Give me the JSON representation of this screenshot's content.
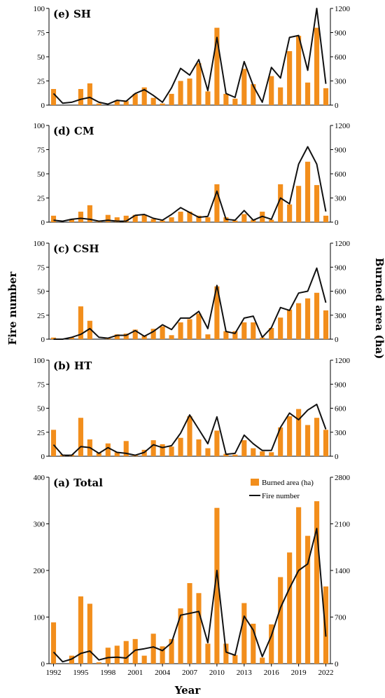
{
  "figure": {
    "ylabel_left": "Fire number",
    "ylabel_right": "Burned area (ha)",
    "xlabel": "Year"
  },
  "legend": {
    "bar_label": "Burned area (ha)",
    "line_label": "Fire number"
  },
  "chart_data": [
    {
      "type": "bar",
      "title": "(e) SH",
      "x": [
        1992,
        1993,
        1994,
        1995,
        1996,
        1997,
        1998,
        1999,
        2000,
        2001,
        2002,
        2003,
        2004,
        2005,
        2006,
        2007,
        2008,
        2009,
        2010,
        2011,
        2012,
        2013,
        2014,
        2015,
        2016,
        2017,
        2018,
        2019,
        2020,
        2021,
        2022
      ],
      "series": [
        {
          "name": "Burned area (ha)",
          "kind": "bar",
          "axis": "right",
          "values": [
            200,
            0,
            0,
            200,
            270,
            20,
            0,
            50,
            50,
            140,
            220,
            90,
            20,
            140,
            300,
            330,
            520,
            170,
            960,
            140,
            80,
            450,
            260,
            0,
            360,
            220,
            670,
            860,
            280,
            960,
            210
          ]
        },
        {
          "name": "Fire number",
          "kind": "line",
          "axis": "left",
          "values": [
            12,
            2,
            3,
            6,
            8,
            3,
            1,
            5,
            4,
            12,
            16,
            10,
            3,
            18,
            38,
            31,
            47,
            15,
            70,
            12,
            8,
            45,
            20,
            3,
            39,
            28,
            70,
            72,
            36,
            100,
            22
          ]
        }
      ],
      "ylim_left": [
        0,
        100
      ],
      "ylim_right": [
        0,
        1200
      ],
      "yticks_left": [
        "0",
        "25",
        "50",
        "75",
        "100"
      ],
      "yticks_right": [
        "0",
        "300",
        "600",
        "900",
        "1200"
      ]
    },
    {
      "type": "bar",
      "title": "(d) CM",
      "x": [
        1992,
        1993,
        1994,
        1995,
        1996,
        1997,
        1998,
        1999,
        2000,
        2001,
        2002,
        2003,
        2004,
        2005,
        2006,
        2007,
        2008,
        2009,
        2010,
        2011,
        2012,
        2013,
        2014,
        2015,
        2016,
        2017,
        2018,
        2019,
        2020,
        2021,
        2022
      ],
      "series": [
        {
          "name": "Burned area (ha)",
          "kind": "bar",
          "axis": "right",
          "values": [
            80,
            0,
            40,
            130,
            210,
            20,
            90,
            60,
            80,
            90,
            90,
            40,
            20,
            60,
            130,
            130,
            80,
            60,
            470,
            60,
            20,
            100,
            30,
            130,
            30,
            470,
            220,
            450,
            750,
            460,
            80
          ]
        },
        {
          "name": "Fire number",
          "kind": "line",
          "axis": "left",
          "values": [
            2,
            1,
            3,
            4,
            3,
            1,
            2,
            1,
            1,
            7,
            8,
            4,
            2,
            8,
            15,
            10,
            5,
            6,
            32,
            3,
            2,
            12,
            2,
            6,
            3,
            25,
            19,
            60,
            78,
            60,
            11
          ]
        }
      ],
      "ylim_left": [
        0,
        100
      ],
      "ylim_right": [
        0,
        1200
      ],
      "yticks_left": [
        "0",
        "25",
        "50",
        "75",
        "100"
      ],
      "yticks_right": [
        "0",
        "300",
        "600",
        "900",
        "1200"
      ]
    },
    {
      "type": "bar",
      "title": "(c) CSH",
      "x": [
        1992,
        1993,
        1994,
        1995,
        1996,
        1997,
        1998,
        1999,
        2000,
        2001,
        2002,
        2003,
        2004,
        2005,
        2006,
        2007,
        2008,
        2009,
        2010,
        2011,
        2012,
        2013,
        2014,
        2015,
        2016,
        2017,
        2018,
        2019,
        2020,
        2021,
        2022
      ],
      "series": [
        {
          "name": "Burned area (ha)",
          "kind": "bar",
          "axis": "right",
          "values": [
            20,
            0,
            20,
            410,
            230,
            0,
            20,
            60,
            70,
            120,
            40,
            130,
            160,
            50,
            210,
            250,
            320,
            60,
            660,
            100,
            100,
            210,
            210,
            20,
            140,
            270,
            370,
            450,
            510,
            580,
            360
          ]
        },
        {
          "name": "Fire number",
          "kind": "line",
          "axis": "left",
          "values": [
            0,
            0,
            2,
            5,
            11,
            2,
            1,
            4,
            4,
            9,
            3,
            8,
            15,
            10,
            22,
            22,
            29,
            11,
            56,
            8,
            6,
            22,
            24,
            2,
            12,
            33,
            30,
            48,
            50,
            74,
            38
          ]
        }
      ],
      "ylim_left": [
        0,
        100
      ],
      "ylim_right": [
        0,
        1200
      ],
      "yticks_left": [
        "0",
        "25",
        "50",
        "75",
        "100"
      ],
      "yticks_right": [
        "0",
        "300",
        "600",
        "900",
        "1200"
      ]
    },
    {
      "type": "bar",
      "title": "(b) HT",
      "x": [
        1992,
        1993,
        1994,
        1995,
        1996,
        1997,
        1998,
        1999,
        2000,
        2001,
        2002,
        2003,
        2004,
        2005,
        2006,
        2007,
        2008,
        2009,
        2010,
        2011,
        2012,
        2013,
        2014,
        2015,
        2016,
        2017,
        2018,
        2019,
        2020,
        2021,
        2022
      ],
      "series": [
        {
          "name": "Burned area (ha)",
          "kind": "bar",
          "axis": "right",
          "values": [
            330,
            20,
            20,
            480,
            210,
            40,
            160,
            50,
            190,
            20,
            80,
            200,
            150,
            120,
            230,
            500,
            210,
            100,
            320,
            30,
            20,
            200,
            100,
            60,
            50,
            360,
            500,
            590,
            390,
            480,
            330
          ]
        },
        {
          "name": "Fire number",
          "kind": "line",
          "axis": "left",
          "values": [
            12,
            1,
            1,
            10,
            9,
            3,
            9,
            4,
            3,
            1,
            4,
            12,
            9,
            11,
            24,
            43,
            28,
            13,
            41,
            2,
            3,
            22,
            13,
            6,
            6,
            30,
            45,
            38,
            48,
            54,
            28
          ]
        }
      ],
      "ylim_left": [
        0,
        100
      ],
      "ylim_right": [
        0,
        1200
      ],
      "yticks_left": [
        "0",
        "25",
        "50",
        "75",
        "100"
      ],
      "yticks_right": [
        "0",
        "300",
        "600",
        "900",
        "1200"
      ]
    },
    {
      "type": "bar",
      "title": "(a) Total",
      "x": [
        1992,
        1993,
        1994,
        1995,
        1996,
        1997,
        1998,
        1999,
        2000,
        2001,
        2002,
        2003,
        2004,
        2005,
        2006,
        2007,
        2008,
        2009,
        2010,
        2011,
        2012,
        2013,
        2014,
        2015,
        2016,
        2017,
        2018,
        2019,
        2020,
        2021,
        2022
      ],
      "xticks": [
        "1992",
        "1995",
        "1998",
        "2001",
        "2004",
        "2007",
        "2010",
        "2013",
        "2016",
        "2019",
        "2022"
      ],
      "series": [
        {
          "name": "Burned area (ha)",
          "kind": "bar",
          "axis": "right",
          "values": [
            620,
            0,
            120,
            1010,
            900,
            20,
            240,
            270,
            340,
            370,
            120,
            450,
            260,
            370,
            830,
            1210,
            1060,
            300,
            2340,
            300,
            130,
            910,
            600,
            90,
            590,
            1300,
            1670,
            2350,
            1920,
            2440,
            1160
          ]
        },
        {
          "name": "Fire number",
          "kind": "line",
          "axis": "left",
          "values": [
            25,
            4,
            10,
            22,
            27,
            8,
            13,
            14,
            12,
            29,
            32,
            36,
            28,
            45,
            104,
            108,
            112,
            45,
            200,
            25,
            18,
            102,
            72,
            15,
            60,
            120,
            162,
            200,
            214,
            290,
            58
          ]
        }
      ],
      "ylim_left": [
        0,
        400
      ],
      "ylim_right": [
        0,
        2800
      ],
      "yticks_left": [
        "0",
        "100",
        "200",
        "300",
        "400"
      ],
      "yticks_right": [
        "0",
        "700",
        "1400",
        "2100",
        "2800"
      ],
      "legend_position": "top-right"
    }
  ]
}
